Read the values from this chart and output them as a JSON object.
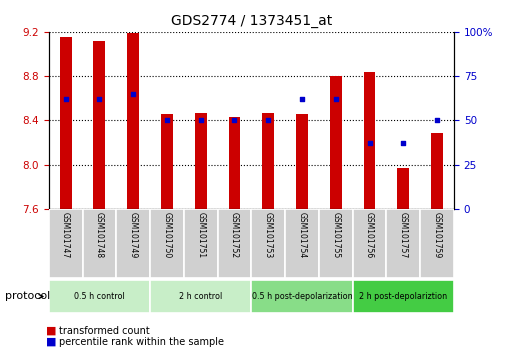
{
  "title": "GDS2774 / 1373451_at",
  "samples": [
    "GSM101747",
    "GSM101748",
    "GSM101749",
    "GSM101750",
    "GSM101751",
    "GSM101752",
    "GSM101753",
    "GSM101754",
    "GSM101755",
    "GSM101756",
    "GSM101757",
    "GSM101759"
  ],
  "transformed_count": [
    9.15,
    9.12,
    9.19,
    8.46,
    8.47,
    8.43,
    8.47,
    8.46,
    8.8,
    8.84,
    7.97,
    8.29
  ],
  "percentile_rank": [
    62,
    62,
    65,
    50,
    50,
    50,
    50,
    62,
    62,
    37,
    37,
    50
  ],
  "ylim_left": [
    7.6,
    9.2
  ],
  "ylim_right": [
    0,
    100
  ],
  "yticks_left": [
    7.6,
    8.0,
    8.4,
    8.8,
    9.2
  ],
  "yticks_right": [
    0,
    25,
    50,
    75,
    100
  ],
  "bar_color": "#cc0000",
  "dot_color": "#0000cc",
  "bar_bottom": 7.6,
  "groups": [
    {
      "label": "0.5 h control",
      "start": 0,
      "end": 3,
      "color": "#c8eec8"
    },
    {
      "label": "2 h control",
      "start": 3,
      "end": 6,
      "color": "#c8eec8"
    },
    {
      "label": "0.5 h post-depolarization",
      "start": 6,
      "end": 9,
      "color": "#88dd88"
    },
    {
      "label": "2 h post-depolariztion",
      "start": 9,
      "end": 12,
      "color": "#44cc44"
    }
  ],
  "legend_items": [
    {
      "label": "transformed count",
      "color": "#cc0000"
    },
    {
      "label": "percentile rank within the sample",
      "color": "#0000cc"
    }
  ],
  "tick_label_color_left": "#cc0000",
  "tick_label_color_right": "#0000cc",
  "protocol_label": "protocol",
  "grey_box_color": "#d0d0d0",
  "white_sep": "#ffffff"
}
